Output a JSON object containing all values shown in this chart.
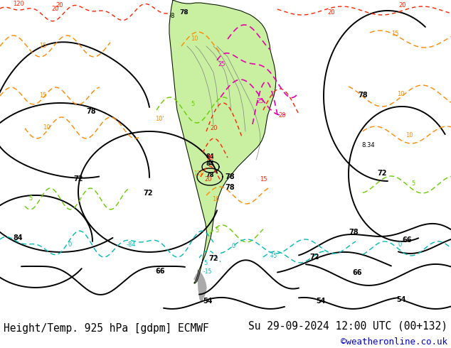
{
  "title_left": "Height/Temp. 925 hPa [gdpm] ECMWF",
  "title_right": "Su 29-09-2024 12:00 UTC (00+132)",
  "credit": "©weatheronline.co.uk",
  "bg_color": "#ffffff",
  "land_green": "#c8f0a0",
  "land_gray": "#b0b0b0",
  "ocean_color": "#f0f0f0",
  "bottom_bar_color": "#d3d3d3",
  "title_font_size": 10.5,
  "credit_font_size": 9,
  "fig_width": 6.34,
  "fig_height": 4.9,
  "dpi": 100
}
